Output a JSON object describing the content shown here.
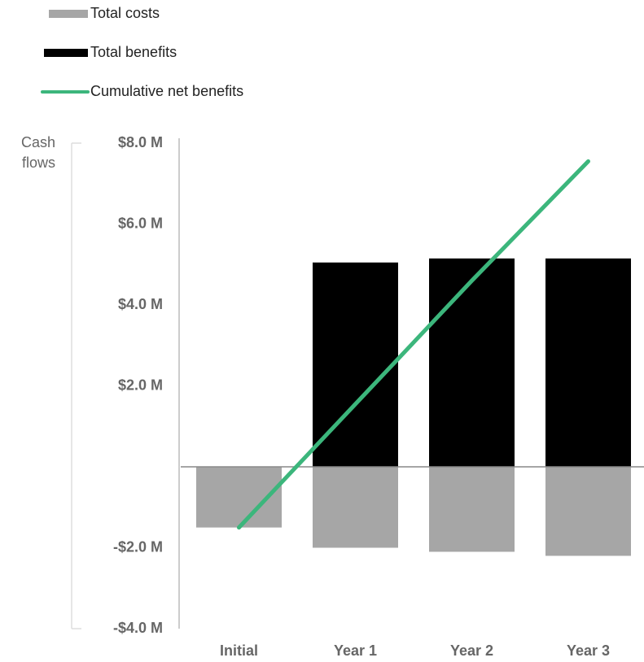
{
  "chart_data": {
    "type": "bar",
    "ylabel": "Cash flows",
    "categories": [
      "Initial",
      "Year 1",
      "Year 2",
      "Year 3"
    ],
    "series": [
      {
        "name": "Total costs",
        "type": "bar",
        "color": "#a6a6a6",
        "values": [
          -1.5,
          -2.0,
          -2.1,
          -2.2
        ]
      },
      {
        "name": "Total benefits",
        "type": "bar",
        "color": "#000000",
        "values": [
          0,
          5.05,
          5.15,
          5.15
        ]
      },
      {
        "name": "Cumulative net benefits",
        "type": "line",
        "color": "#3cb67c",
        "values": [
          -1.5,
          1.55,
          4.6,
          7.55
        ]
      }
    ],
    "ylim": [
      -4,
      8
    ],
    "yticks": [
      {
        "value": 8,
        "label": "$8.0 M"
      },
      {
        "value": 6,
        "label": "$6.0 M"
      },
      {
        "value": 4,
        "label": "$4.0 M"
      },
      {
        "value": 2,
        "label": "$2.0 M"
      },
      {
        "value": -2,
        "label": "-$2.0 M"
      },
      {
        "value": -4,
        "label": "-$4.0 M"
      }
    ],
    "legend": "top-left",
    "grid": false
  }
}
